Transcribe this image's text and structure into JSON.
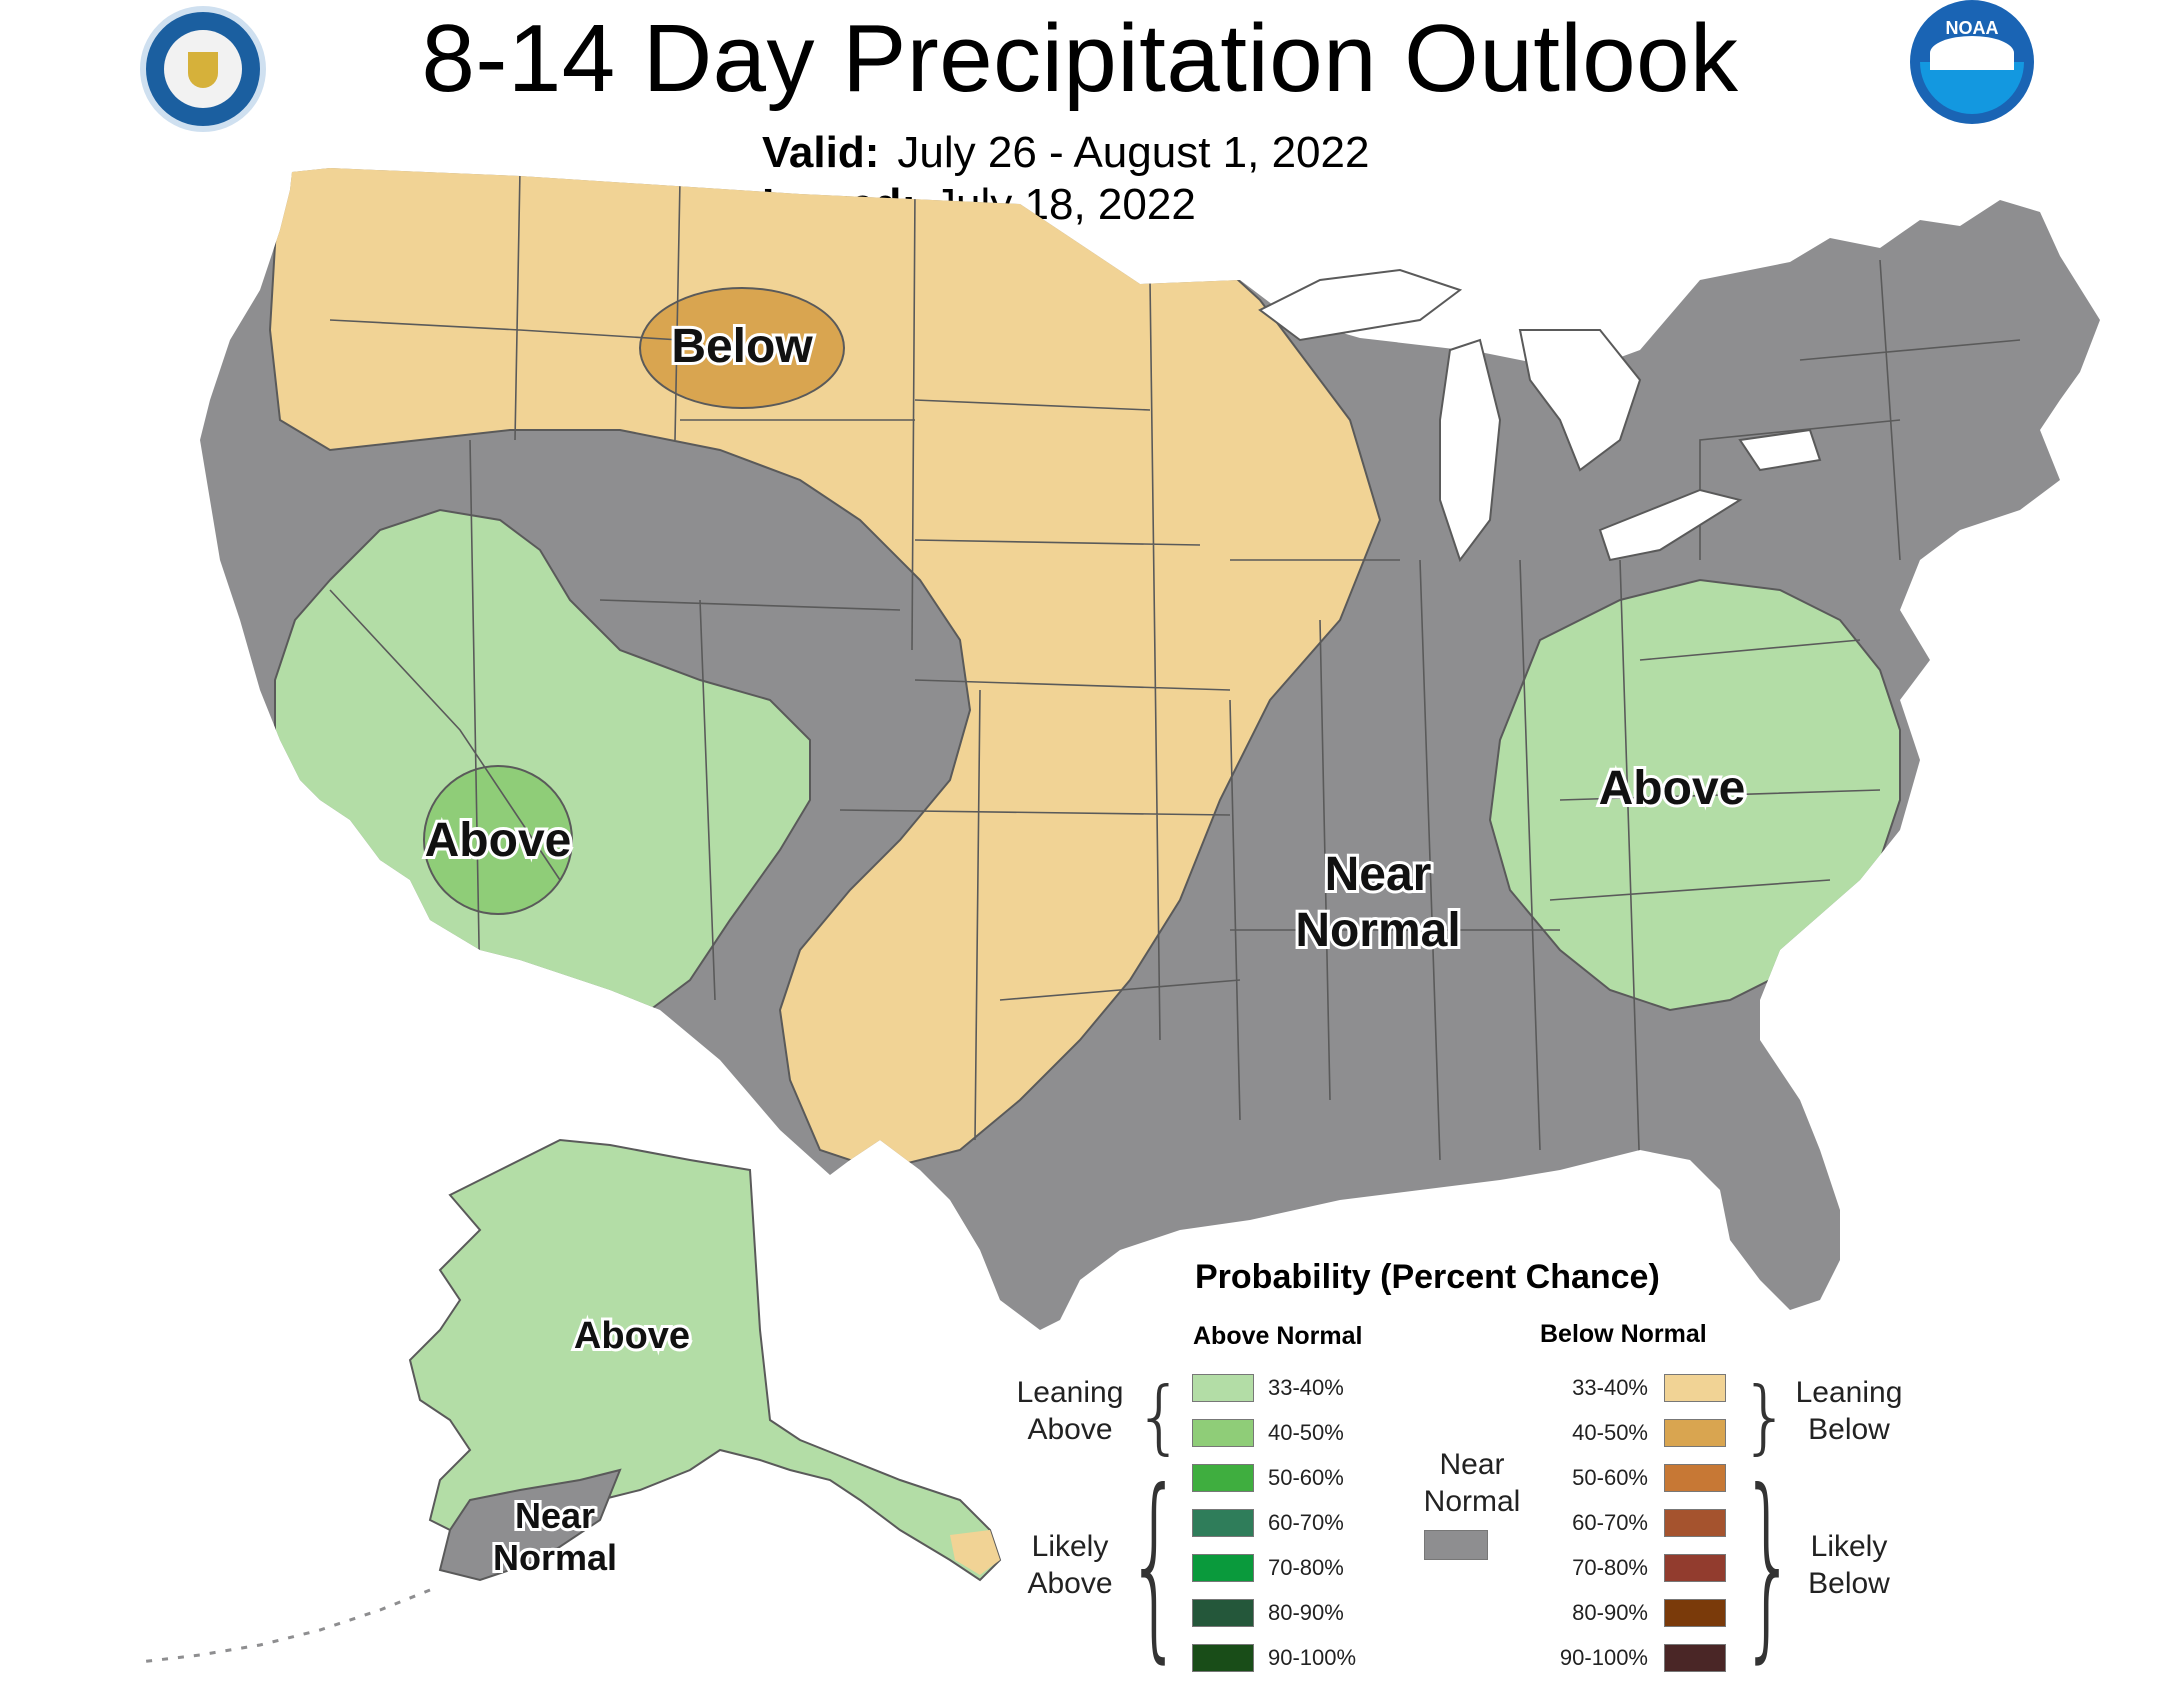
{
  "header": {
    "title": "8-14 Day Precipitation Outlook",
    "valid_label": "Valid:",
    "valid_value": "July 26 - August 1, 2022",
    "issued_label": "Issued:",
    "issued_value": "July 18, 2022"
  },
  "logos": {
    "left": "department-of-commerce-seal",
    "right": "noaa-logo",
    "noaa_text": "NOAA"
  },
  "map": {
    "regions": {
      "below_north": "Below",
      "above_west": "Above",
      "near_normal_central": [
        "Near",
        "Normal"
      ],
      "above_east": "Above",
      "above_alaska": "Above",
      "near_normal_alaska": [
        "Near",
        "Normal"
      ]
    },
    "colors": {
      "near_normal": "#8e8e90",
      "leaning_above": "#b3dda6",
      "above_40_50": "#8fcd78",
      "leaning_below": "#f1d395",
      "below_40_50": "#d9a550",
      "boundary": "#5a5a5a",
      "water": "#ffffff"
    }
  },
  "legend": {
    "title": "Probability (Percent Chance)",
    "above_header": "Above Normal",
    "below_header": "Below Normal",
    "near_normal": {
      "label": [
        "Near",
        "Normal"
      ],
      "color": "#8e8e90"
    },
    "above": [
      {
        "range": "33-40%",
        "color": "#b3dda6"
      },
      {
        "range": "40-50%",
        "color": "#8fcd78"
      },
      {
        "range": "50-60%",
        "color": "#3fae3f"
      },
      {
        "range": "60-70%",
        "color": "#2f7d5a"
      },
      {
        "range": "70-80%",
        "color": "#0a9a3c"
      },
      {
        "range": "80-90%",
        "color": "#24573a"
      },
      {
        "range": "90-100%",
        "color": "#194d18"
      }
    ],
    "below": [
      {
        "range": "33-40%",
        "color": "#f1d395"
      },
      {
        "range": "40-50%",
        "color": "#d9a550"
      },
      {
        "range": "50-60%",
        "color": "#c77835"
      },
      {
        "range": "60-70%",
        "color": "#a5532e"
      },
      {
        "range": "70-80%",
        "color": "#923c2e"
      },
      {
        "range": "80-90%",
        "color": "#7a3a0a"
      },
      {
        "range": "90-100%",
        "color": "#4a2626"
      }
    ],
    "groups": {
      "leaning_above": [
        "Leaning",
        "Above"
      ],
      "likely_above": [
        "Likely",
        "Above"
      ],
      "leaning_below": [
        "Leaning",
        "Below"
      ],
      "likely_below": [
        "Likely",
        "Below"
      ]
    }
  }
}
